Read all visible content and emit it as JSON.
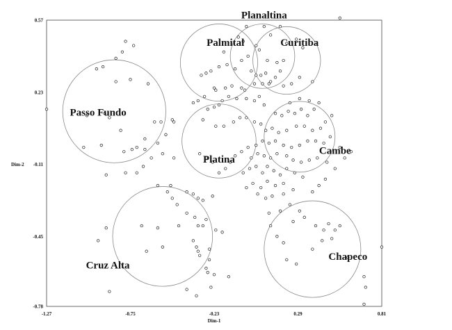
{
  "chart_data": {
    "type": "scatter",
    "xlabel": "Dim-1",
    "ylabel": "Dim-2",
    "xlim": [
      -1.27,
      0.81
    ],
    "ylim": [
      -0.78,
      0.57
    ],
    "xticks": [
      "-1.27",
      "-0.75",
      "-0.23",
      "0.29",
      "0.81"
    ],
    "yticks": [
      "0.57",
      "0.23",
      "-0.11",
      "-0.45",
      "-0.78"
    ],
    "xtick_values": [
      -1.27,
      -0.75,
      -0.23,
      0.29,
      0.81
    ],
    "ytick_values": [
      0.57,
      0.23,
      -0.11,
      -0.45,
      -0.78
    ],
    "grid": false,
    "groups": [
      {
        "name": "Planaltina",
        "center": [
          0.07,
          0.4
        ],
        "r": 0.2,
        "label_at": [
          0.08,
          0.59
        ]
      },
      {
        "name": "Palmital",
        "center": [
          -0.2,
          0.37
        ],
        "r": 0.24,
        "label_at": [
          -0.16,
          0.46
        ]
      },
      {
        "name": "Curitiba",
        "center": [
          0.22,
          0.38
        ],
        "r": 0.21,
        "label_at": [
          0.3,
          0.46
        ]
      },
      {
        "name": "Passo Fundo",
        "center": [
          -0.85,
          0.14
        ],
        "r": 0.32,
        "label_at": [
          -0.95,
          0.13
        ]
      },
      {
        "name": "Platina",
        "center": [
          -0.2,
          0.0
        ],
        "r": 0.23,
        "label_at": [
          -0.2,
          -0.09
        ]
      },
      {
        "name": "Cambe",
        "center": [
          0.3,
          0.02
        ],
        "r": 0.22,
        "label_at": [
          0.52,
          -0.05
        ]
      },
      {
        "name": "Cruz Alta",
        "center": [
          -0.55,
          -0.45
        ],
        "r": 0.31,
        "label_at": [
          -0.89,
          -0.59
        ]
      },
      {
        "name": "Chapeco",
        "center": [
          0.38,
          -0.51
        ],
        "r": 0.3,
        "label_at": [
          0.6,
          -0.55
        ]
      }
    ],
    "points": [
      [
        -1.27,
        0.15
      ],
      [
        -0.78,
        0.47
      ],
      [
        -0.73,
        0.45
      ],
      [
        -0.8,
        0.42
      ],
      [
        -0.84,
        0.39
      ],
      [
        -0.92,
        0.35
      ],
      [
        -0.96,
        0.34
      ],
      [
        -0.75,
        0.29
      ],
      [
        -0.84,
        0.28
      ],
      [
        -0.64,
        0.27
      ],
      [
        -0.91,
        0.13
      ],
      [
        -0.88,
        0.11
      ],
      [
        -1.02,
        0.12
      ],
      [
        -0.81,
        0.05
      ],
      [
        -0.6,
        0.09
      ],
      [
        -0.56,
        0.09
      ],
      [
        -0.48,
        0.09
      ],
      [
        -0.49,
        0.1
      ],
      [
        -0.53,
        0.03
      ],
      [
        -0.66,
        0.01
      ],
      [
        -0.58,
        -0.01
      ],
      [
        -0.71,
        -0.03
      ],
      [
        -0.79,
        -0.05
      ],
      [
        -0.74,
        -0.04
      ],
      [
        -0.93,
        -0.02
      ],
      [
        -1.04,
        -0.03
      ],
      [
        -0.66,
        -0.04
      ],
      [
        -0.55,
        -0.06
      ],
      [
        -0.62,
        -0.08
      ],
      [
        -0.48,
        -0.08
      ],
      [
        -0.9,
        -0.16
      ],
      [
        -0.78,
        -0.15
      ],
      [
        -0.71,
        -0.15
      ],
      [
        -0.67,
        -0.12
      ],
      [
        -0.58,
        -0.21
      ],
      [
        -0.5,
        -0.21
      ],
      [
        -0.52,
        -0.24
      ],
      [
        -0.49,
        -0.27
      ],
      [
        -0.46,
        -0.3
      ],
      [
        -0.4,
        -0.24
      ],
      [
        -0.36,
        -0.25
      ],
      [
        -0.33,
        -0.27
      ],
      [
        -0.3,
        -0.28
      ],
      [
        -0.24,
        -0.26
      ],
      [
        -0.4,
        -0.34
      ],
      [
        -0.35,
        -0.36
      ],
      [
        -0.28,
        -0.37
      ],
      [
        -0.68,
        -0.4
      ],
      [
        -0.9,
        -0.41
      ],
      [
        -0.58,
        -0.41
      ],
      [
        -0.45,
        -0.4
      ],
      [
        -0.33,
        -0.4
      ],
      [
        -0.3,
        -0.4
      ],
      [
        -0.22,
        -0.42
      ],
      [
        -0.18,
        -0.43
      ],
      [
        -0.36,
        -0.47
      ],
      [
        -0.34,
        -0.5
      ],
      [
        -0.32,
        -0.54
      ],
      [
        -0.26,
        -0.51
      ],
      [
        -0.95,
        -0.47
      ],
      [
        -0.65,
        -0.52
      ],
      [
        -0.55,
        -0.5
      ],
      [
        -0.33,
        -0.52
      ],
      [
        -0.26,
        -0.56
      ],
      [
        -0.28,
        -0.6
      ],
      [
        -0.27,
        -0.62
      ],
      [
        -0.23,
        -0.63
      ],
      [
        -0.14,
        -0.64
      ],
      [
        -0.88,
        -0.71
      ],
      [
        -0.4,
        -0.7
      ],
      [
        -0.25,
        -0.69
      ],
      [
        -0.34,
        -0.73
      ],
      [
        -0.31,
        0.31
      ],
      [
        -0.28,
        0.32
      ],
      [
        -0.25,
        0.33
      ],
      [
        -0.2,
        0.35
      ],
      [
        -0.15,
        0.36
      ],
      [
        -0.1,
        0.34
      ],
      [
        -0.06,
        0.38
      ],
      [
        -0.02,
        0.4
      ],
      [
        0.03,
        0.45
      ],
      [
        -0.05,
        0.47
      ],
      [
        -0.08,
        0.49
      ],
      [
        -0.17,
        0.42
      ],
      [
        -0.23,
        0.25
      ],
      [
        -0.22,
        0.24
      ],
      [
        -0.16,
        0.25
      ],
      [
        -0.12,
        0.26
      ],
      [
        -0.06,
        0.25
      ],
      [
        -0.04,
        0.24
      ],
      [
        -0.14,
        0.21
      ],
      [
        -0.18,
        0.19
      ],
      [
        -0.2,
        0.17
      ],
      [
        -0.23,
        0.16
      ],
      [
        -0.27,
        0.15
      ],
      [
        -0.29,
        0.21
      ],
      [
        -0.33,
        0.19
      ],
      [
        -0.36,
        0.18
      ],
      [
        -0.09,
        0.2
      ],
      [
        -0.03,
        0.2
      ],
      [
        0.02,
        0.19
      ],
      [
        0.05,
        0.21
      ],
      [
        0.08,
        0.17
      ],
      [
        0.12,
        0.28
      ],
      [
        0.15,
        0.3
      ],
      [
        0.18,
        0.33
      ],
      [
        0.2,
        0.26
      ],
      [
        0.25,
        0.27
      ],
      [
        0.3,
        0.3
      ],
      [
        0.38,
        0.28
      ],
      [
        0.32,
        0.44
      ],
      [
        0.28,
        0.48
      ],
      [
        0.2,
        0.38
      ],
      [
        0.16,
        0.37
      ],
      [
        0.1,
        0.38
      ],
      [
        0.05,
        0.43
      ],
      [
        0.12,
        0.5
      ],
      [
        0.18,
        0.54
      ],
      [
        0.22,
        0.46
      ],
      [
        0.08,
        0.54
      ],
      [
        -0.03,
        0.54
      ],
      [
        0.0,
        0.33
      ],
      [
        0.03,
        0.31
      ],
      [
        0.06,
        0.31
      ],
      [
        0.09,
        0.32
      ],
      [
        0.11,
        0.27
      ],
      [
        0.07,
        0.27
      ],
      [
        0.02,
        0.27
      ],
      [
        -0.3,
        0.1
      ],
      [
        -0.22,
        0.07
      ],
      [
        -0.17,
        0.07
      ],
      [
        -0.11,
        0.09
      ],
      [
        -0.07,
        0.11
      ],
      [
        -0.03,
        0.11
      ],
      [
        0.02,
        0.09
      ],
      [
        0.06,
        0.08
      ],
      [
        0.09,
        0.05
      ],
      [
        0.13,
        0.06
      ],
      [
        0.17,
        0.04
      ],
      [
        0.22,
        0.05
      ],
      [
        0.28,
        0.07
      ],
      [
        0.33,
        0.07
      ],
      [
        0.38,
        0.05
      ],
      [
        0.43,
        0.06
      ],
      [
        0.46,
        0.09
      ],
      [
        0.5,
        0.12
      ],
      [
        0.49,
        0.02
      ],
      [
        0.45,
        -0.01
      ],
      [
        0.4,
        0.0
      ],
      [
        0.35,
        0.0
      ],
      [
        0.3,
        -0.02
      ],
      [
        0.25,
        -0.03
      ],
      [
        0.2,
        -0.02
      ],
      [
        0.15,
        0.0
      ],
      [
        0.11,
        -0.01
      ],
      [
        0.07,
        0.0
      ],
      [
        0.03,
        -0.02
      ],
      [
        -0.02,
        -0.03
      ],
      [
        -0.06,
        -0.05
      ],
      [
        -0.1,
        -0.07
      ],
      [
        -0.13,
        -0.1
      ],
      [
        -0.16,
        -0.13
      ],
      [
        -0.2,
        -0.15
      ],
      [
        -0.24,
        -0.1
      ],
      [
        -0.28,
        -0.08
      ],
      [
        -0.32,
        -0.06
      ],
      [
        0.0,
        -0.08
      ],
      [
        0.04,
        -0.06
      ],
      [
        0.08,
        -0.07
      ],
      [
        0.12,
        -0.08
      ],
      [
        0.16,
        -0.06
      ],
      [
        0.22,
        -0.07
      ],
      [
        0.26,
        -0.09
      ],
      [
        0.31,
        -0.1
      ],
      [
        0.36,
        -0.09
      ],
      [
        0.41,
        -0.08
      ],
      [
        0.47,
        -0.1
      ],
      [
        0.52,
        -0.13
      ],
      [
        0.58,
        -0.08
      ],
      [
        0.62,
        -0.05
      ],
      [
        0.55,
        -0.03
      ],
      [
        0.15,
        0.13
      ],
      [
        0.19,
        0.12
      ],
      [
        0.23,
        0.14
      ],
      [
        0.27,
        0.13
      ],
      [
        0.31,
        0.15
      ],
      [
        0.35,
        0.12
      ],
      [
        0.39,
        0.15
      ],
      [
        0.42,
        0.18
      ],
      [
        0.36,
        0.19
      ],
      [
        0.3,
        0.2
      ],
      [
        0.24,
        0.18
      ],
      [
        -0.05,
        -0.15
      ],
      [
        -0.01,
        -0.13
      ],
      [
        0.03,
        -0.12
      ],
      [
        0.07,
        -0.15
      ],
      [
        0.1,
        -0.12
      ],
      [
        0.14,
        -0.14
      ],
      [
        0.18,
        -0.16
      ],
      [
        0.22,
        -0.13
      ],
      [
        0.27,
        -0.15
      ],
      [
        0.32,
        -0.17
      ],
      [
        0.2,
        -0.2
      ],
      [
        0.15,
        -0.21
      ],
      [
        0.1,
        -0.19
      ],
      [
        0.06,
        -0.22
      ],
      [
        0.01,
        -0.2
      ],
      [
        -0.03,
        -0.22
      ],
      [
        0.04,
        -0.25
      ],
      [
        0.09,
        -0.27
      ],
      [
        0.13,
        -0.26
      ],
      [
        0.2,
        -0.25
      ],
      [
        0.26,
        -0.23
      ],
      [
        0.38,
        -0.24
      ],
      [
        0.42,
        -0.21
      ],
      [
        0.46,
        -0.18
      ],
      [
        0.24,
        -0.3
      ],
      [
        0.3,
        -0.33
      ],
      [
        0.18,
        -0.33
      ],
      [
        0.11,
        -0.34
      ],
      [
        0.12,
        -0.4
      ],
      [
        0.16,
        -0.45
      ],
      [
        0.2,
        -0.48
      ],
      [
        0.26,
        -0.38
      ],
      [
        0.33,
        -0.36
      ],
      [
        0.4,
        -0.4
      ],
      [
        0.45,
        -0.42
      ],
      [
        0.48,
        -0.39
      ],
      [
        0.52,
        -0.42
      ],
      [
        0.55,
        -0.4
      ],
      [
        0.5,
        -0.46
      ],
      [
        0.44,
        -0.47
      ],
      [
        0.38,
        -0.51
      ],
      [
        0.22,
        -0.56
      ],
      [
        0.28,
        -0.58
      ],
      [
        0.81,
        -0.5
      ],
      [
        0.7,
        -0.64
      ],
      [
        0.71,
        -0.69
      ],
      [
        0.6,
        -0.55
      ],
      [
        0.7,
        -0.77
      ],
      [
        0.55,
        0.58
      ]
    ]
  }
}
